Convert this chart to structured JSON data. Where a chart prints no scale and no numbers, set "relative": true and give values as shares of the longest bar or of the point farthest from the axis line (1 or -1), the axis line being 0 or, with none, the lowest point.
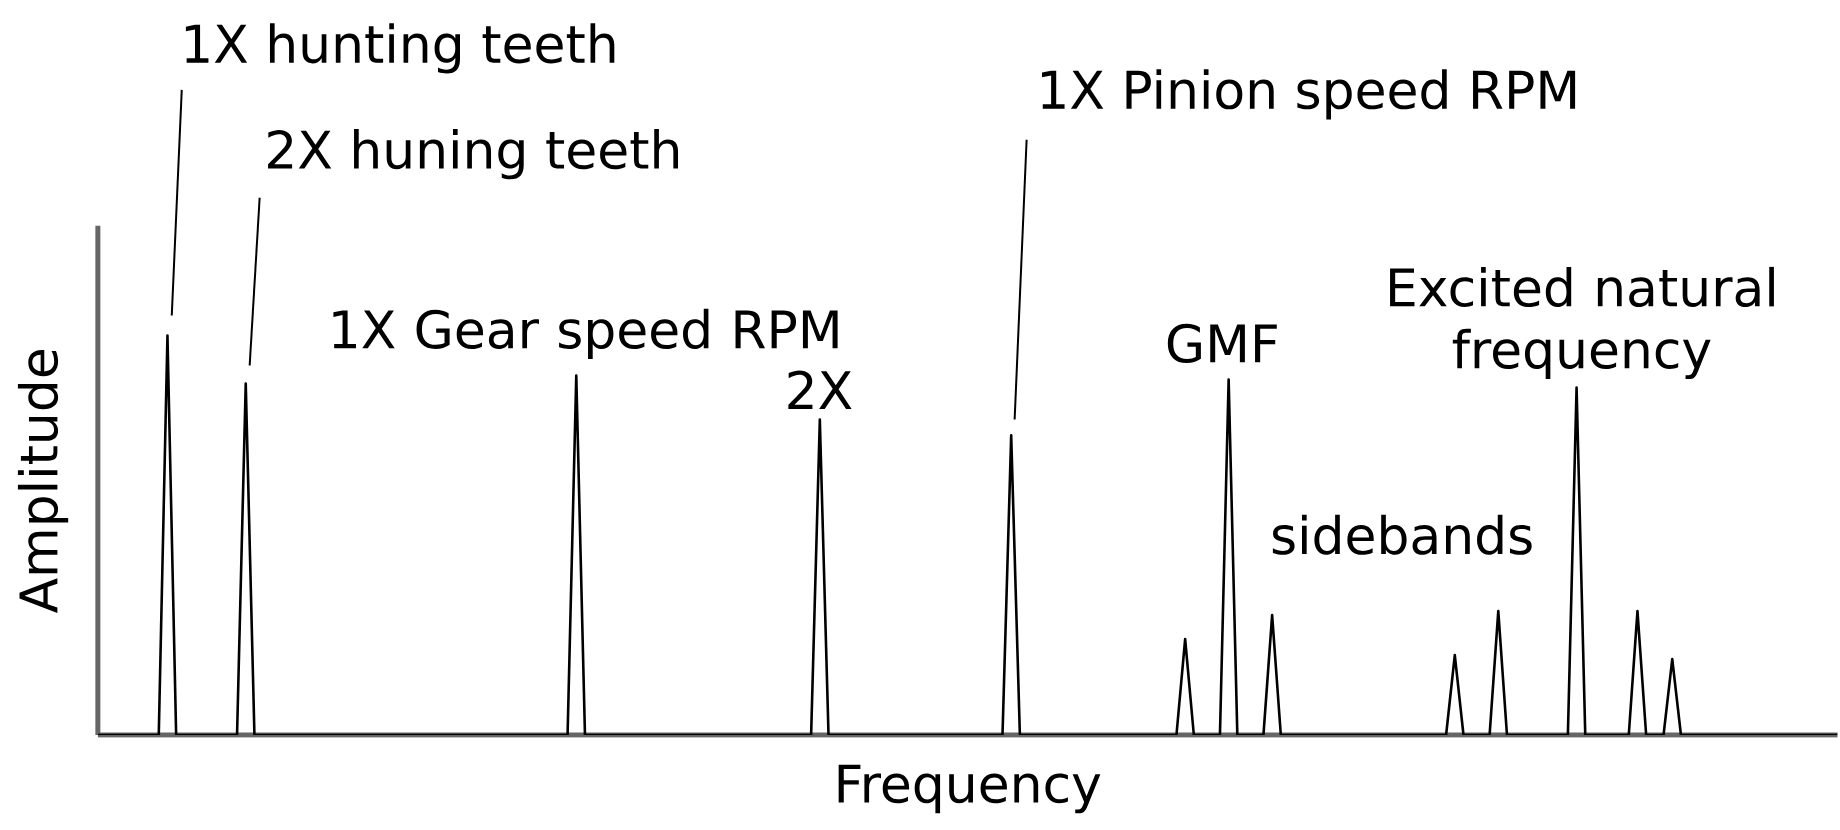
{
  "chart_data": {
    "type": "line",
    "relative": true,
    "xlabel": "Frequency",
    "ylabel": "Amplitude",
    "tick_labels": false,
    "color": "#000000",
    "categories": [
      null,
      null,
      null,
      null,
      null,
      null,
      null,
      null,
      null,
      null,
      null,
      null,
      null,
      null,
      null,
      null,
      null,
      null,
      null,
      null,
      null,
      null,
      null,
      null,
      null,
      null,
      null,
      null,
      null,
      null,
      null,
      null,
      null,
      null,
      null,
      null,
      null,
      null,
      null,
      null,
      null,
      null,
      null,
      null,
      null,
      null,
      null,
      null,
      null,
      null,
      null,
      null,
      null,
      null,
      null,
      null,
      null,
      null,
      null,
      null,
      null,
      null,
      null,
      null,
      null,
      null,
      null,
      null,
      null,
      null,
      null,
      null,
      null,
      null,
      null,
      null,
      null,
      null,
      null,
      null,
      null,
      null,
      null,
      null,
      null,
      null,
      null,
      null,
      null,
      null,
      null,
      null,
      null,
      null,
      null,
      null,
      null,
      null,
      null,
      null,
      null,
      null,
      null,
      null,
      null,
      null,
      null,
      null,
      null,
      null,
      null,
      null,
      null,
      null,
      null,
      null,
      null,
      null,
      null,
      null,
      null,
      null,
      null,
      null,
      null,
      null,
      null,
      null,
      null,
      null,
      null,
      null,
      null,
      null,
      null,
      null,
      null,
      null,
      null,
      null,
      null,
      null,
      null,
      null,
      null,
      null,
      null,
      null,
      null,
      null,
      null,
      null,
      null,
      null,
      null,
      null,
      null,
      null,
      null,
      null,
      null,
      null,
      null,
      null,
      null,
      null,
      null,
      null,
      null,
      null,
      null,
      null,
      null,
      null,
      null,
      null,
      null,
      null,
      null,
      null,
      null,
      null,
      null,
      null,
      null,
      null,
      null,
      null,
      null,
      null,
      null,
      null,
      null,
      null,
      null,
      null,
      null,
      null,
      null,
      null,
      null
    ],
    "values": [
      0,
      0,
      0,
      0,
      0,
      0,
      0,
      0,
      1,
      0,
      0,
      0,
      0,
      0,
      0,
      0,
      0,
      0.88,
      0,
      0,
      0,
      0,
      0,
      0,
      0,
      0,
      0,
      0,
      0,
      0,
      0,
      0,
      0,
      0,
      0,
      0,
      0,
      0,
      0,
      0,
      0,
      0,
      0,
      0,
      0,
      0,
      0,
      0,
      0,
      0,
      0,
      0,
      0,
      0,
      0,
      0.9,
      0,
      0,
      0,
      0,
      0,
      0,
      0,
      0,
      0,
      0,
      0,
      0,
      0,
      0,
      0,
      0,
      0,
      0,
      0,
      0,
      0,
      0,
      0,
      0,
      0,
      0,
      0,
      0.79,
      0,
      0,
      0,
      0,
      0,
      0,
      0,
      0,
      0,
      0,
      0,
      0,
      0,
      0,
      0,
      0,
      0,
      0,
      0,
      0,
      0,
      0.75,
      0,
      0,
      0,
      0,
      0,
      0,
      0,
      0,
      0,
      0,
      0,
      0,
      0,
      0,
      0,
      0,
      0,
      0,
      0,
      0.24,
      0,
      0,
      0,
      0,
      0.89,
      0,
      0,
      0,
      0,
      0.3,
      0,
      0,
      0,
      0,
      0,
      0,
      0,
      0,
      0,
      0,
      0,
      0,
      0,
      0,
      0,
      0,
      0,
      0,
      0,
      0,
      0.2,
      0,
      0,
      0,
      0,
      0.31,
      0,
      0,
      0,
      0,
      0,
      0,
      0,
      0,
      0.87,
      0,
      0,
      0,
      0,
      0,
      0,
      0.31,
      0,
      0,
      0,
      0.19,
      0,
      0,
      0,
      0,
      0,
      0,
      0,
      0,
      0,
      0,
      0,
      0,
      0,
      0,
      0,
      0,
      0,
      0,
      0
    ],
    "annotations": [
      "1X hunting teeth",
      "2X huning teeth",
      "1X Gear speed RPM",
      "2X",
      "1X Pinion speed RPM",
      "GMF",
      "sidebands",
      "Excited natural frequency"
    ]
  }
}
